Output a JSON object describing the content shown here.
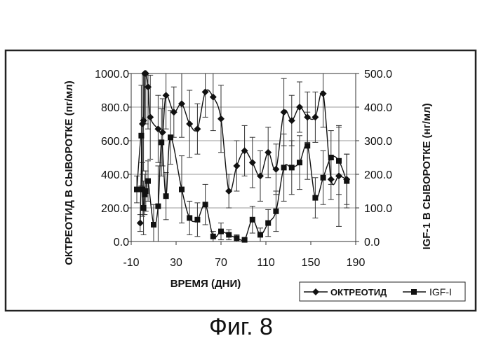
{
  "caption": "Фиг. 8",
  "chart_data": {
    "type": "line",
    "xlabel": "ВРЕМЯ (ДНИ)",
    "ylabel_left": "ОКТРЕОТИД В СЫВОРОТКЕ (пг/мл)",
    "ylabel_right": "IGF-1 В СЫВОРОТКЕ (нг/мл)",
    "xlim": [
      -10,
      190
    ],
    "ylim_left": [
      0,
      1000
    ],
    "ylim_right": [
      0,
      500
    ],
    "x_ticks": [
      "-10",
      "30",
      "70",
      "110",
      "150",
      "190"
    ],
    "y_left_ticks": [
      "0.0",
      "200.0",
      "400.0",
      "600.0",
      "800.0",
      "1000.0"
    ],
    "y_right_ticks": [
      "0.0",
      "100.0",
      "200.0",
      "300.0",
      "400.0",
      "500.0"
    ],
    "grid": true,
    "legend_position": "bottom-right",
    "series": [
      {
        "name": "ОКТРЕОТИД",
        "axis": "left",
        "marker": "diamond",
        "x": [
          -2,
          0,
          1,
          2,
          3,
          5,
          7,
          14,
          18,
          21,
          28,
          35,
          42,
          49,
          56,
          63,
          70,
          77,
          84,
          91,
          98,
          105,
          112,
          119,
          126,
          133,
          140,
          147,
          154,
          161,
          168,
          175,
          182
        ],
        "y": [
          110,
          700,
          720,
          1000,
          1000,
          920,
          740,
          670,
          650,
          870,
          770,
          820,
          700,
          670,
          890,
          860,
          730,
          300,
          450,
          540,
          470,
          390,
          530,
          430,
          770,
          720,
          800,
          740,
          740,
          880,
          370,
          390,
          370
        ],
        "err": [
          50,
          300,
          300,
          300,
          300,
          250,
          250,
          200,
          200,
          200,
          150,
          200,
          200,
          150,
          150,
          200,
          200,
          100,
          150,
          150,
          150,
          150,
          150,
          150,
          200,
          150,
          150,
          150,
          150,
          200,
          120,
          300,
          150
        ]
      },
      {
        "name": "IGF-I",
        "axis": "right",
        "marker": "square",
        "x": [
          -5,
          -1,
          0,
          1,
          2,
          3,
          5,
          10,
          14,
          17,
          21,
          25,
          35,
          42,
          49,
          56,
          63,
          70,
          77,
          84,
          91,
          98,
          105,
          112,
          119,
          126,
          133,
          140,
          147,
          154,
          161,
          168,
          175,
          182
        ],
        "y": [
          155,
          315,
          155,
          100,
          140,
          150,
          180,
          50,
          105,
          295,
          135,
          310,
          155,
          70,
          65,
          110,
          15,
          30,
          20,
          10,
          5,
          65,
          20,
          55,
          90,
          220,
          220,
          235,
          285,
          130,
          190,
          250,
          240,
          180
        ],
        "err": [
          40,
          150,
          80,
          80,
          60,
          60,
          60,
          60,
          120,
          100,
          70,
          80,
          100,
          50,
          50,
          60,
          15,
          25,
          15,
          10,
          5,
          40,
          20,
          40,
          60,
          100,
          80,
          80,
          100,
          60,
          80,
          80,
          100,
          80
        ]
      }
    ]
  }
}
